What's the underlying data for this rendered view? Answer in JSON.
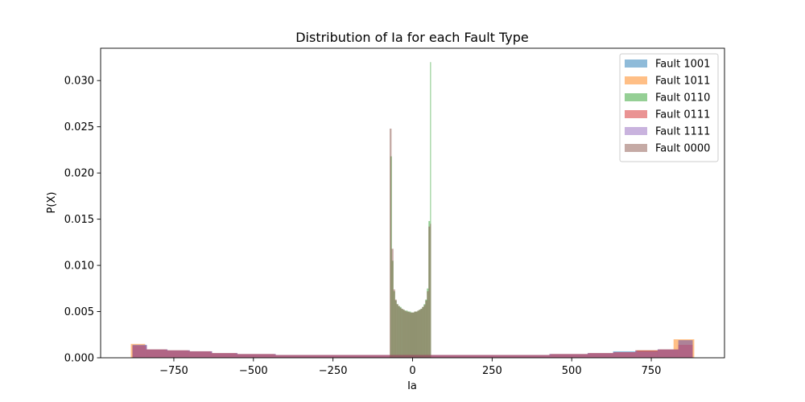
{
  "chart_data": {
    "type": "histogram",
    "title": "Distribution of Ia for each Fault Type",
    "xlabel": "Ia",
    "ylabel": "P(X)",
    "xlim": [
      -980,
      980
    ],
    "ylim": [
      0,
      0.0335
    ],
    "xticks": [
      -750,
      -500,
      -250,
      0,
      250,
      500,
      750
    ],
    "xtick_labels": [
      "−750",
      "−500",
      "−250",
      "0",
      "250",
      "500",
      "750"
    ],
    "yticks": [
      0.0,
      0.005,
      0.01,
      0.015,
      0.02,
      0.025,
      0.03
    ],
    "ytick_labels": [
      "0.000",
      "0.005",
      "0.010",
      "0.015",
      "0.020",
      "0.025",
      "0.030"
    ],
    "legend_position": "upper right",
    "grid": false,
    "bar_alpha": 0.5,
    "series": [
      {
        "name": "Fault 1001",
        "color": "#1f77b4",
        "bins": [
          [
            -880,
            -835,
            0.0014
          ],
          [
            -835,
            -770,
            0.0009
          ],
          [
            -770,
            -700,
            0.0008
          ],
          [
            -700,
            -630,
            0.0007
          ],
          [
            -630,
            -550,
            0.0005
          ],
          [
            -550,
            -430,
            0.0004
          ],
          [
            -430,
            -300,
            0.0003
          ],
          [
            -300,
            300,
            0.0003
          ],
          [
            300,
            430,
            0.0003
          ],
          [
            430,
            550,
            0.0004
          ],
          [
            550,
            630,
            0.0005
          ],
          [
            630,
            700,
            0.0007
          ],
          [
            700,
            770,
            0.0008
          ],
          [
            770,
            835,
            0.0009
          ],
          [
            835,
            880,
            0.0019
          ]
        ]
      },
      {
        "name": "Fault 1011",
        "color": "#ff7f0e",
        "bins": [
          [
            -885,
            -840,
            0.0015
          ],
          [
            -840,
            -775,
            0.0009
          ],
          [
            -775,
            -705,
            0.0008
          ],
          [
            -705,
            -635,
            0.0007
          ],
          [
            -635,
            -555,
            0.0005
          ],
          [
            -555,
            -435,
            0.0004
          ],
          [
            -435,
            -305,
            0.0003
          ],
          [
            -305,
            305,
            0.0003
          ],
          [
            305,
            435,
            0.0003
          ],
          [
            435,
            555,
            0.0004
          ],
          [
            555,
            635,
            0.0005
          ],
          [
            635,
            705,
            0.0006
          ],
          [
            705,
            775,
            0.0008
          ],
          [
            775,
            820,
            0.0009
          ],
          [
            820,
            885,
            0.002
          ]
        ]
      },
      {
        "name": "Fault 0110",
        "color": "#2ca02c",
        "bins": [
          [
            -70,
            -65,
            0.0218
          ],
          [
            -65,
            -60,
            0.0105
          ],
          [
            -60,
            -55,
            0.0072
          ],
          [
            -55,
            -50,
            0.0062
          ],
          [
            -50,
            -45,
            0.0058
          ],
          [
            -45,
            -40,
            0.0056
          ],
          [
            -40,
            -35,
            0.0055
          ],
          [
            -35,
            -30,
            0.0053
          ],
          [
            -30,
            -25,
            0.0052
          ],
          [
            -25,
            -20,
            0.0051
          ],
          [
            -20,
            -15,
            0.0051
          ],
          [
            -15,
            -10,
            0.005
          ],
          [
            -10,
            -5,
            0.005
          ],
          [
            -5,
            0,
            0.0049
          ],
          [
            0,
            5,
            0.0049
          ],
          [
            5,
            10,
            0.005
          ],
          [
            10,
            15,
            0.005
          ],
          [
            15,
            20,
            0.0051
          ],
          [
            20,
            25,
            0.0052
          ],
          [
            25,
            30,
            0.0053
          ],
          [
            30,
            35,
            0.0055
          ],
          [
            35,
            40,
            0.0058
          ],
          [
            40,
            45,
            0.0063
          ],
          [
            45,
            50,
            0.0075
          ],
          [
            50,
            55,
            0.0148
          ],
          [
            55,
            58,
            0.032
          ]
        ]
      },
      {
        "name": "Fault 0111",
        "color": "#d62728",
        "bins": [
          [
            -880,
            -835,
            0.0013
          ],
          [
            -835,
            -770,
            0.0009
          ],
          [
            -770,
            -700,
            0.0008
          ],
          [
            -700,
            -630,
            0.0007
          ],
          [
            -630,
            -550,
            0.0005
          ],
          [
            -550,
            -430,
            0.0004
          ],
          [
            -430,
            -300,
            0.0003
          ],
          [
            -300,
            300,
            0.0003
          ],
          [
            300,
            430,
            0.0003
          ],
          [
            430,
            550,
            0.0004
          ],
          [
            550,
            630,
            0.0005
          ],
          [
            630,
            700,
            0.0006
          ],
          [
            700,
            770,
            0.0008
          ],
          [
            770,
            835,
            0.0009
          ],
          [
            835,
            880,
            0.0014
          ]
        ]
      },
      {
        "name": "Fault 1111",
        "color": "#9467bd",
        "bins": [
          [
            -880,
            -835,
            0.0014
          ],
          [
            -835,
            -770,
            0.0009
          ],
          [
            -770,
            -700,
            0.0008
          ],
          [
            -700,
            -630,
            0.0007
          ],
          [
            -630,
            -550,
            0.0005
          ],
          [
            -550,
            -430,
            0.0004
          ],
          [
            -430,
            -300,
            0.0003
          ],
          [
            -300,
            300,
            0.0003
          ],
          [
            300,
            430,
            0.0003
          ],
          [
            430,
            550,
            0.0004
          ],
          [
            550,
            630,
            0.0005
          ],
          [
            630,
            700,
            0.0006
          ],
          [
            700,
            770,
            0.0007
          ],
          [
            770,
            835,
            0.0009
          ],
          [
            835,
            880,
            0.0019
          ]
        ]
      },
      {
        "name": "Fault 0000",
        "color": "#8c564b",
        "bins": [
          [
            -72,
            -66,
            0.0248
          ],
          [
            -66,
            -60,
            0.0118
          ],
          [
            -60,
            -55,
            0.0074
          ],
          [
            -55,
            -50,
            0.0063
          ],
          [
            -50,
            -45,
            0.0058
          ],
          [
            -45,
            -40,
            0.0056
          ],
          [
            -40,
            -35,
            0.0054
          ],
          [
            -35,
            -30,
            0.0053
          ],
          [
            -30,
            -25,
            0.0052
          ],
          [
            -25,
            -20,
            0.0051
          ],
          [
            -20,
            -15,
            0.005
          ],
          [
            -15,
            -10,
            0.005
          ],
          [
            -10,
            -5,
            0.0049
          ],
          [
            -5,
            0,
            0.0049
          ],
          [
            0,
            5,
            0.0049
          ],
          [
            5,
            10,
            0.005
          ],
          [
            10,
            15,
            0.005
          ],
          [
            15,
            20,
            0.0051
          ],
          [
            20,
            25,
            0.0052
          ],
          [
            25,
            30,
            0.0053
          ],
          [
            30,
            35,
            0.0055
          ],
          [
            35,
            40,
            0.0057
          ],
          [
            40,
            45,
            0.0062
          ],
          [
            45,
            50,
            0.0072
          ],
          [
            50,
            55,
            0.0142
          ],
          [
            55,
            58,
            0.0145
          ]
        ]
      }
    ]
  }
}
